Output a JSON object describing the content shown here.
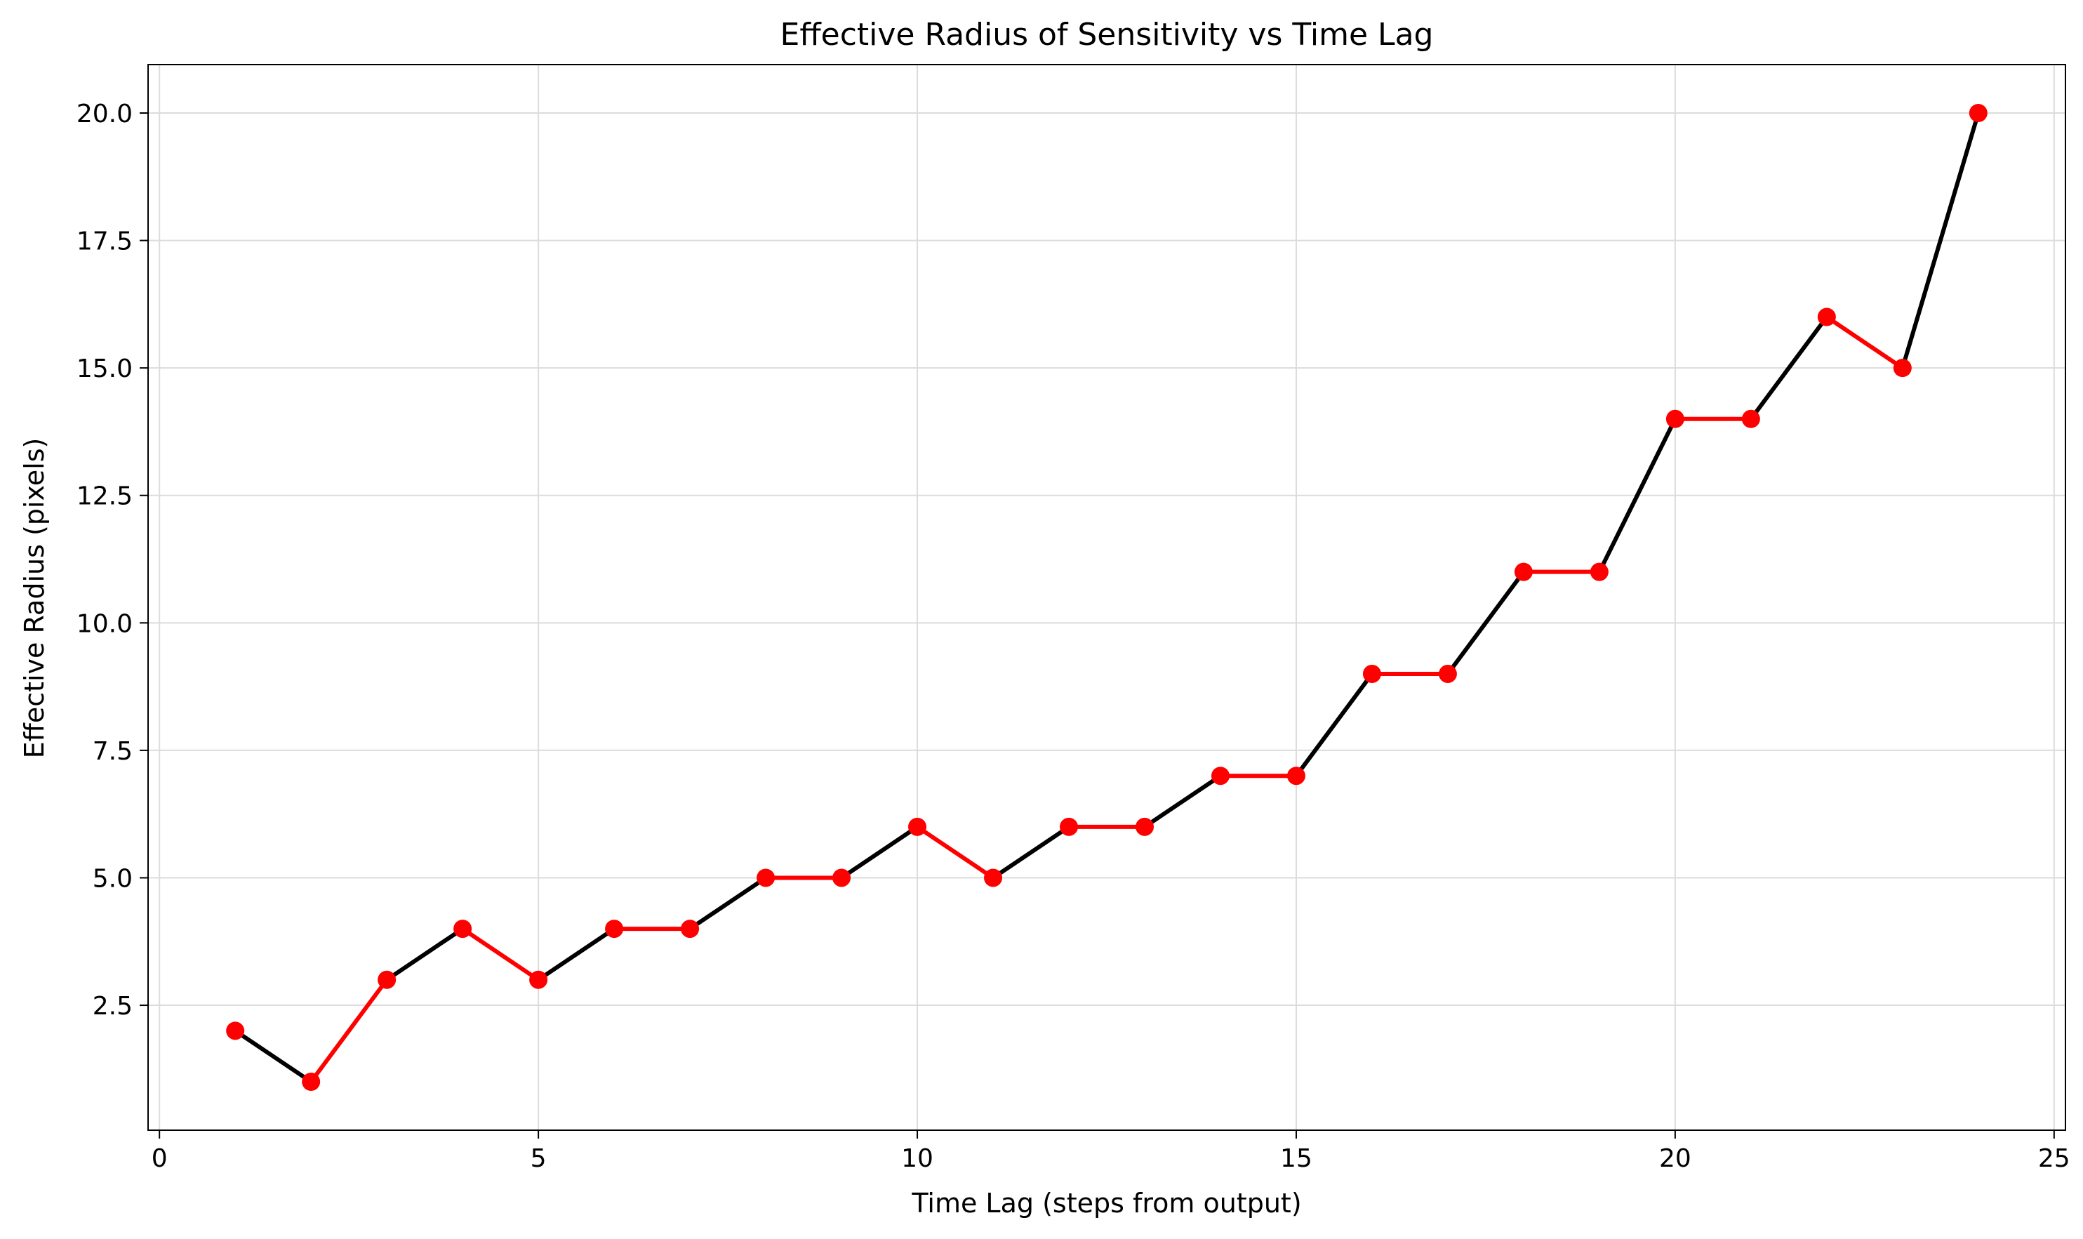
{
  "chart_data": {
    "type": "line",
    "title": "Effective Radius of Sensitivity vs Time Lag",
    "xlabel": "Time Lag (steps from output)",
    "ylabel": "Effective Radius (pixels)",
    "x": [
      1,
      2,
      3,
      4,
      5,
      6,
      7,
      8,
      9,
      10,
      11,
      12,
      13,
      14,
      15,
      16,
      17,
      18,
      19,
      20,
      21,
      22,
      23,
      24
    ],
    "series": [
      {
        "values": [
          2,
          1,
          3,
          4,
          3,
          4,
          4,
          5,
          5,
          6,
          5,
          6,
          6,
          7,
          7,
          9,
          9,
          11,
          11,
          14,
          14,
          16,
          15,
          20
        ]
      }
    ],
    "segment_colors": [
      "black",
      "red",
      "black",
      "red",
      "black",
      "red",
      "black",
      "red",
      "black",
      "red",
      "black",
      "red",
      "black",
      "red",
      "black",
      "red",
      "black",
      "red",
      "black",
      "red",
      "black",
      "red",
      "black"
    ],
    "marker_color": "#ff0000",
    "xlim": [
      -0.15,
      25.15
    ],
    "ylim": [
      0.05,
      20.95
    ],
    "xticks": [
      0,
      5,
      10,
      15,
      20,
      25
    ],
    "xtick_labels": [
      "0",
      "5",
      "10",
      "15",
      "20",
      "25"
    ],
    "yticks": [
      2.5,
      5.0,
      7.5,
      10.0,
      12.5,
      15.0,
      17.5,
      20.0
    ],
    "ytick_labels": [
      "2.5",
      "5.0",
      "7.5",
      "10.0",
      "12.5",
      "15.0",
      "17.5",
      "20.0"
    ],
    "grid": true
  }
}
